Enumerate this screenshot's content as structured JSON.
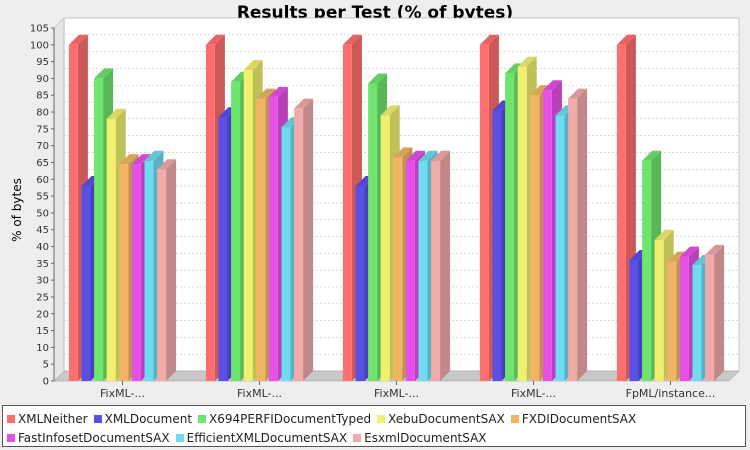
{
  "chart_data": {
    "type": "bar",
    "title": "Results per Test (% of bytes)",
    "xlabel": "",
    "ylabel": "% of bytes",
    "ylim": [
      0,
      105
    ],
    "ytick_step": 5,
    "grid": true,
    "legend_placement": "bottom",
    "categories": [
      "FixML-...",
      "FixML-...",
      "FixML-...",
      "FixML-...",
      "FpML/instance..."
    ],
    "series": [
      {
        "name": "XMLNeither",
        "color": "#ff6e6e",
        "values": [
          100,
          100,
          100,
          100,
          100
        ]
      },
      {
        "name": "XMLDocument",
        "color": "#5a50e6",
        "values": [
          58,
          78.5,
          58,
          80.5,
          36
        ]
      },
      {
        "name": "X694PERFIDocumentTyped",
        "color": "#6ee66e",
        "values": [
          90,
          89,
          88.5,
          91.5,
          65.5
        ]
      },
      {
        "name": "XebuDocumentSAX",
        "color": "#f0f06e",
        "values": [
          78,
          92.5,
          79,
          93.5,
          42
        ]
      },
      {
        "name": "FXDIDocumentSAX",
        "color": "#f0b464",
        "values": [
          64.5,
          84,
          66.5,
          85,
          35.5
        ]
      },
      {
        "name": "FastInfosetDocumentSAX",
        "color": "#e650e6",
        "values": [
          64.5,
          84.5,
          65.5,
          86.5,
          37
        ]
      },
      {
        "name": "EfficientXMLDocumentSAX",
        "color": "#6edcf0",
        "values": [
          65.5,
          75.5,
          65.5,
          79,
          34.5
        ]
      },
      {
        "name": "EsxmlDocumentSAX",
        "color": "#f0aaaa",
        "values": [
          63,
          81,
          65.5,
          84,
          37.5
        ]
      }
    ]
  }
}
